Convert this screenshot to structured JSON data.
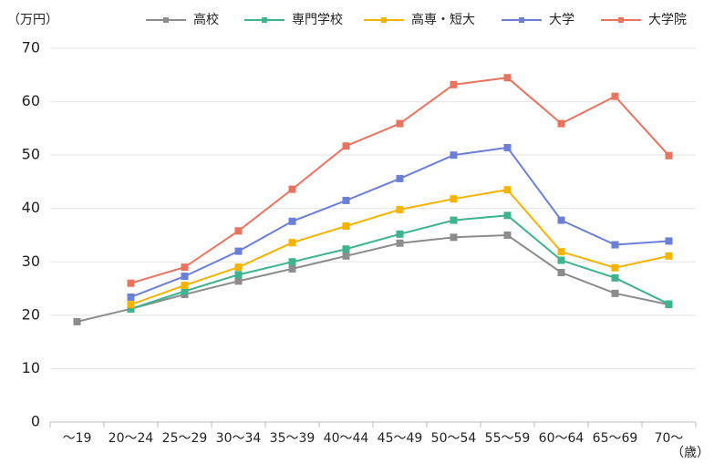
{
  "chart_data": {
    "type": "line",
    "y_label": "（万円）",
    "x_label": "（歳）",
    "categories": [
      "～19",
      "20～24",
      "25～29",
      "30～34",
      "35～39",
      "40～44",
      "45～49",
      "50～54",
      "55～59",
      "60～64",
      "65～69",
      "70～"
    ],
    "series": [
      {
        "name": "高校",
        "color": "#8c8c8c",
        "values": [
          18.8,
          21.2,
          23.9,
          26.4,
          28.7,
          31.1,
          33.5,
          34.6,
          35.0,
          28.0,
          24.1,
          22.0
        ]
      },
      {
        "name": "専門学校",
        "color": "#3db38f",
        "values": [
          null,
          21.2,
          24.5,
          27.6,
          30.0,
          32.4,
          35.2,
          37.8,
          38.7,
          30.3,
          27.0,
          22.1
        ]
      },
      {
        "name": "高専・短大",
        "color": "#f5b400",
        "values": [
          null,
          22.0,
          25.6,
          29.0,
          33.6,
          36.7,
          39.8,
          41.8,
          43.5,
          31.9,
          28.9,
          31.1
        ]
      },
      {
        "name": "大学",
        "color": "#6b7fd9",
        "values": [
          null,
          23.4,
          27.3,
          32.0,
          37.6,
          41.5,
          45.6,
          50.0,
          51.4,
          37.8,
          33.2,
          33.9
        ]
      },
      {
        "name": "大学院",
        "color": "#e8735f",
        "values": [
          null,
          26.0,
          29.0,
          35.8,
          43.6,
          51.7,
          55.9,
          63.2,
          64.5,
          55.9,
          61.0,
          49.9
        ]
      }
    ],
    "ylim": [
      0,
      70
    ],
    "yticks": [
      0,
      10,
      20,
      30,
      40,
      50,
      60,
      70
    ],
    "grid": true,
    "legend": "top"
  }
}
